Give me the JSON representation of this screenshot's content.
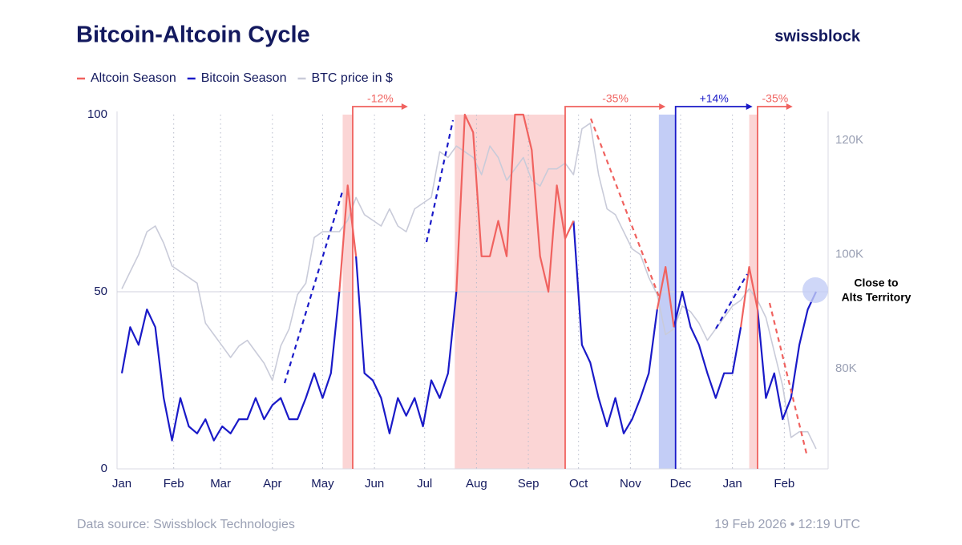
{
  "chart_data": {
    "type": "line",
    "title": "Bitcoin-Altcoin Cycle",
    "brand": "swissblock",
    "source": "Data source: Swissblock Technologies",
    "timestamp": "19 Feb 2026 • 12:19 UTC",
    "xlim": [
      0,
      415
    ],
    "xticks": [
      {
        "value": 0,
        "label": "Jan"
      },
      {
        "value": 31,
        "label": "Feb"
      },
      {
        "value": 59,
        "label": "Mar"
      },
      {
        "value": 90,
        "label": "Apr"
      },
      {
        "value": 120,
        "label": "May"
      },
      {
        "value": 151,
        "label": "Jun"
      },
      {
        "value": 181,
        "label": "Jul"
      },
      {
        "value": 212,
        "label": "Aug"
      },
      {
        "value": 243,
        "label": "Sep"
      },
      {
        "value": 273,
        "label": "Oct"
      },
      {
        "value": 304,
        "label": "Nov"
      },
      {
        "value": 334,
        "label": "Dec"
      },
      {
        "value": 365,
        "label": "Jan"
      },
      {
        "value": 396,
        "label": "Feb"
      }
    ],
    "ylim": [
      0,
      100
    ],
    "yticks": [
      0,
      50,
      100
    ],
    "y2lim": [
      62500,
      124500
    ],
    "y2ticks": [
      {
        "value": 80000,
        "label": "80K"
      },
      {
        "value": 100000,
        "label": "100K"
      },
      {
        "value": 120000,
        "label": "120K"
      }
    ],
    "x": [
      0,
      5,
      10,
      15,
      20,
      25,
      30,
      35,
      40,
      45,
      50,
      55,
      60,
      65,
      70,
      75,
      80,
      85,
      90,
      95,
      100,
      105,
      110,
      115,
      120,
      125,
      130,
      135,
      140,
      145,
      150,
      155,
      160,
      165,
      170,
      175,
      180,
      185,
      190,
      195,
      200,
      205,
      210,
      215,
      220,
      225,
      230,
      235,
      240,
      245,
      250,
      255,
      260,
      265,
      270,
      275,
      280,
      285,
      290,
      295,
      300,
      305,
      310,
      315,
      320,
      325,
      330,
      335,
      340,
      345,
      350,
      355,
      360,
      365,
      370,
      375,
      380,
      385,
      390,
      395,
      400,
      405,
      410,
      415
    ],
    "series": [
      {
        "name": "Altcoin Season",
        "color": "#f0625f",
        "values": [
          null,
          null,
          null,
          null,
          null,
          null,
          null,
          null,
          null,
          null,
          null,
          null,
          null,
          null,
          null,
          null,
          null,
          null,
          null,
          null,
          null,
          null,
          null,
          null,
          null,
          null,
          50,
          80,
          60,
          null,
          null,
          null,
          null,
          null,
          null,
          null,
          null,
          null,
          null,
          null,
          50,
          100,
          95,
          60,
          60,
          70,
          60,
          100,
          100,
          90,
          60,
          50,
          80,
          65,
          70,
          null,
          null,
          null,
          null,
          null,
          null,
          null,
          null,
          null,
          45,
          57,
          40,
          null,
          null,
          null,
          null,
          null,
          null,
          null,
          40,
          57,
          45,
          null,
          null,
          null,
          null,
          null,
          null,
          null
        ]
      },
      {
        "name": "Bitcoin Season",
        "color": "#1a1ac8",
        "values": [
          27,
          40,
          35,
          45,
          40,
          20,
          8,
          20,
          12,
          10,
          14,
          8,
          12,
          10,
          14,
          14,
          20,
          14,
          18,
          20,
          14,
          14,
          20,
          27,
          20,
          27,
          50,
          null,
          60,
          27,
          25,
          20,
          10,
          20,
          15,
          20,
          12,
          25,
          20,
          27,
          50,
          null,
          null,
          null,
          null,
          null,
          null,
          null,
          null,
          null,
          null,
          null,
          null,
          null,
          70,
          35,
          30,
          20,
          12,
          20,
          10,
          14,
          20,
          27,
          45,
          null,
          40,
          50,
          40,
          35,
          27,
          20,
          27,
          27,
          40,
          null,
          45,
          20,
          27,
          14,
          20,
          35,
          45,
          50
        ]
      },
      {
        "name": "BTC price in $",
        "color": "#c9cbd9",
        "axis": "y2",
        "values": [
          94000,
          97000,
          100000,
          104000,
          105000,
          102000,
          98000,
          97000,
          96000,
          95000,
          88000,
          86000,
          84000,
          82000,
          84000,
          85000,
          83000,
          81000,
          78000,
          84000,
          87000,
          93000,
          95000,
          103000,
          104000,
          104000,
          104000,
          106000,
          110000,
          107000,
          106000,
          105000,
          108000,
          105000,
          104000,
          108000,
          109000,
          110000,
          118000,
          117000,
          119000,
          118000,
          117000,
          114000,
          119000,
          117000,
          113000,
          115000,
          117000,
          113000,
          112000,
          115000,
          115000,
          116000,
          114000,
          122000,
          123000,
          114000,
          108000,
          107000,
          104000,
          101000,
          100000,
          96000,
          93000,
          86000,
          87000,
          91000,
          90000,
          88000,
          85000,
          87000,
          89000,
          91000,
          92000,
          94000,
          92000,
          89000,
          83000,
          77000,
          68000,
          69000,
          69000,
          66000
        ]
      }
    ],
    "shaded": [
      {
        "x": [
          132,
          138
        ],
        "color": "#fbd5d5"
      },
      {
        "x": [
          199,
          265
        ],
        "color": "#fbd5d5"
      },
      {
        "x": [
          321,
          331
        ],
        "color": "#c3cdf6"
      },
      {
        "x": [
          375,
          380
        ],
        "color": "#fbd5d5"
      }
    ],
    "brackets": [
      {
        "label": "-12%",
        "x": [
          138,
          171
        ],
        "color": "#f0625f"
      },
      {
        "label": "-35%",
        "x": [
          265,
          325
        ],
        "color": "#f0625f"
      },
      {
        "label": "+14%",
        "x": [
          331,
          377
        ],
        "color": "#1a1ac8"
      },
      {
        "label": "-35%",
        "x": [
          380,
          401
        ],
        "color": "#f0625f"
      }
    ],
    "annotation": [
      "Close to",
      "Alts Territory"
    ]
  }
}
